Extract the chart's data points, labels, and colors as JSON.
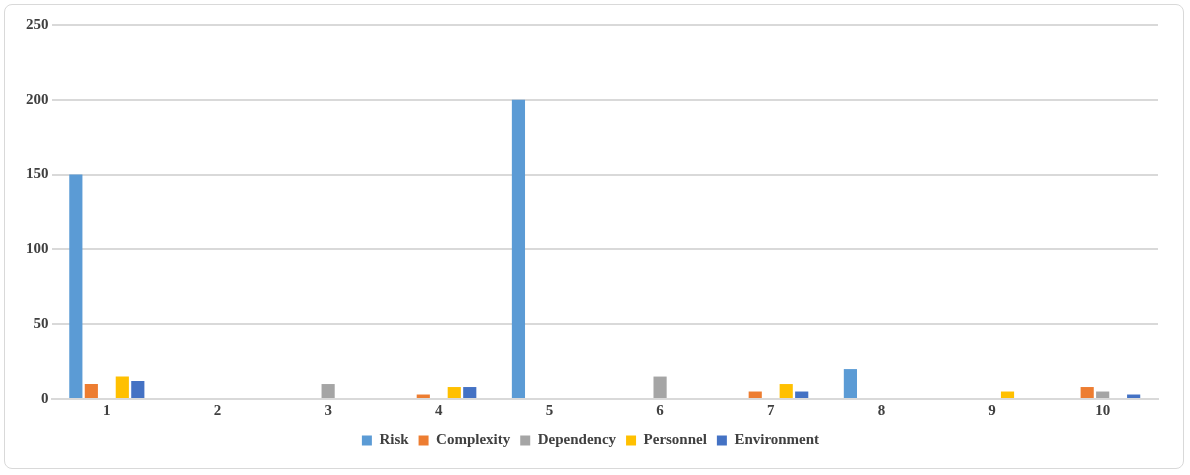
{
  "chart_data": {
    "type": "bar",
    "categories": [
      "1",
      "2",
      "3",
      "4",
      "5",
      "6",
      "7",
      "8",
      "9",
      "10"
    ],
    "series": [
      {
        "name": "Risk",
        "color": "#5b9bd5",
        "values": [
          150,
          0,
          0,
          0,
          200,
          0,
          0,
          20,
          0,
          0
        ]
      },
      {
        "name": "Complexity",
        "color": "#ed7d31",
        "values": [
          10,
          0,
          0,
          3,
          0,
          0,
          5,
          0,
          0,
          8
        ]
      },
      {
        "name": "Dependency",
        "color": "#a5a5a5",
        "values": [
          0,
          0,
          10,
          0,
          0,
          15,
          0,
          0,
          0,
          5
        ]
      },
      {
        "name": "Personnel",
        "color": "#ffc000",
        "values": [
          15,
          0,
          0,
          8,
          0,
          0,
          10,
          0,
          5,
          0
        ]
      },
      {
        "name": "Environment",
        "color": "#4472c4",
        "values": [
          12,
          0,
          0,
          8,
          0,
          0,
          5,
          0,
          0,
          3
        ]
      }
    ],
    "ylim": [
      0,
      250
    ],
    "yticks": [
      0,
      50,
      100,
      150,
      200,
      250
    ],
    "grid": "y",
    "legend": "bottom"
  }
}
